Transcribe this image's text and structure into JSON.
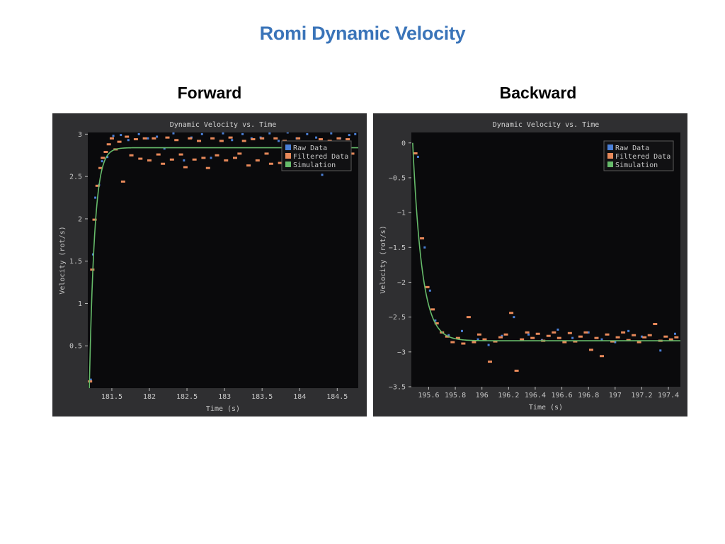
{
  "slide": {
    "title": "Romi Dynamic Velocity",
    "left_heading": "Forward",
    "right_heading": "Backward"
  },
  "colors": {
    "raw": "#4a7fd6",
    "filtered": "#e8895a",
    "simulation": "#66bb6a",
    "plot_bg": "#0a0a0c",
    "panel_bg": "#2f2f31"
  },
  "chart_data": [
    {
      "type": "scatter",
      "title": "Dynamic Velocity vs. Time",
      "xlabel": "Time (s)",
      "ylabel": "Velocity (rot/s)",
      "xlim": [
        181.18,
        184.78
      ],
      "ylim": [
        0,
        3.02
      ],
      "xticks": [
        181.5,
        182,
        182.5,
        183,
        183.5,
        184,
        184.5
      ],
      "yticks": [
        0.5,
        1,
        1.5,
        2,
        2.5,
        3
      ],
      "legend": {
        "placement": "top-right",
        "entries": [
          "Raw Data",
          "Filtered Data",
          "Simulation"
        ]
      },
      "simulation": {
        "start_time": 181.2,
        "final_value": 2.84,
        "time_constant": 0.07
      },
      "filtered_points": [
        [
          181.21,
          0.08
        ],
        [
          181.24,
          1.4
        ],
        [
          181.27,
          1.99
        ],
        [
          181.31,
          2.39
        ],
        [
          181.35,
          2.6
        ],
        [
          181.38,
          2.72
        ],
        [
          181.42,
          2.79
        ],
        [
          181.46,
          2.88
        ],
        [
          181.5,
          2.95
        ],
        [
          181.55,
          2.82
        ],
        [
          181.6,
          2.91
        ],
        [
          181.65,
          2.44
        ],
        [
          181.7,
          2.97
        ],
        [
          181.76,
          2.75
        ],
        [
          181.82,
          2.94
        ],
        [
          181.88,
          2.71
        ],
        [
          181.94,
          2.95
        ],
        [
          182.0,
          2.69
        ],
        [
          182.06,
          2.95
        ],
        [
          182.12,
          2.76
        ],
        [
          182.18,
          2.65
        ],
        [
          182.24,
          2.96
        ],
        [
          182.3,
          2.7
        ],
        [
          182.36,
          2.93
        ],
        [
          182.42,
          2.76
        ],
        [
          182.48,
          2.61
        ],
        [
          182.54,
          2.95
        ],
        [
          182.6,
          2.7
        ],
        [
          182.66,
          2.92
        ],
        [
          182.72,
          2.72
        ],
        [
          182.78,
          2.6
        ],
        [
          182.84,
          2.95
        ],
        [
          182.9,
          2.75
        ],
        [
          182.96,
          2.92
        ],
        [
          183.02,
          2.69
        ],
        [
          183.08,
          2.96
        ],
        [
          183.14,
          2.72
        ],
        [
          183.2,
          2.77
        ],
        [
          183.26,
          2.92
        ],
        [
          183.32,
          2.63
        ],
        [
          183.38,
          2.94
        ],
        [
          183.44,
          2.69
        ],
        [
          183.5,
          2.95
        ],
        [
          183.56,
          2.77
        ],
        [
          183.62,
          2.65
        ],
        [
          183.68,
          2.95
        ],
        [
          183.74,
          2.66
        ],
        [
          183.8,
          2.92
        ],
        [
          183.86,
          2.72
        ],
        [
          183.92,
          2.61
        ],
        [
          183.98,
          2.95
        ],
        [
          184.04,
          2.68
        ],
        [
          184.1,
          2.91
        ],
        [
          184.16,
          2.75
        ],
        [
          184.22,
          2.64
        ],
        [
          184.28,
          2.94
        ],
        [
          184.34,
          2.7
        ],
        [
          184.4,
          2.92
        ],
        [
          184.46,
          2.73
        ],
        [
          184.52,
          2.95
        ],
        [
          184.58,
          2.68
        ],
        [
          184.64,
          2.94
        ],
        [
          184.7,
          2.77
        ]
      ],
      "raw_points": [
        [
          181.22,
          0.1
        ],
        [
          181.25,
          1.58
        ],
        [
          181.28,
          2.25
        ],
        [
          181.33,
          2.4
        ],
        [
          181.37,
          2.68
        ],
        [
          181.44,
          2.73
        ],
        [
          181.52,
          2.98
        ],
        [
          181.62,
          2.99
        ],
        [
          181.72,
          2.93
        ],
        [
          181.86,
          3.0
        ],
        [
          181.98,
          2.95
        ],
        [
          182.1,
          2.97
        ],
        [
          182.2,
          2.83
        ],
        [
          182.32,
          3.01
        ],
        [
          182.46,
          2.69
        ],
        [
          182.56,
          2.96
        ],
        [
          182.7,
          3.0
        ],
        [
          182.82,
          2.72
        ],
        [
          182.98,
          3.01
        ],
        [
          183.1,
          2.93
        ],
        [
          183.24,
          3.0
        ],
        [
          183.36,
          2.95
        ],
        [
          183.48,
          2.96
        ],
        [
          183.6,
          3.01
        ],
        [
          183.72,
          2.92
        ],
        [
          183.84,
          3.02
        ],
        [
          183.96,
          2.95
        ],
        [
          184.1,
          3.0
        ],
        [
          184.22,
          2.96
        ],
        [
          184.3,
          2.52
        ],
        [
          184.42,
          3.01
        ],
        [
          184.54,
          2.95
        ],
        [
          184.66,
          2.99
        ],
        [
          184.74,
          3.0
        ]
      ]
    },
    {
      "type": "scatter",
      "title": "Dynamic Velocity vs. Time",
      "xlabel": "Time (s)",
      "ylabel": "Velocity (rot/s)",
      "xlim": [
        195.47,
        197.49
      ],
      "ylim": [
        -3.5,
        0.15
      ],
      "xticks": [
        195.6,
        195.8,
        196,
        196.2,
        196.4,
        196.6,
        196.8,
        197,
        197.2,
        197.4
      ],
      "yticks": [
        0,
        -0.5,
        -1,
        -1.5,
        -2,
        -2.5,
        -3,
        -3.5
      ],
      "legend": {
        "placement": "top-right",
        "entries": [
          "Raw Data",
          "Filtered Data",
          "Simulation"
        ]
      },
      "simulation": {
        "start_time": 195.48,
        "final_value": -2.84,
        "time_constant": 0.07
      },
      "filtered_points": [
        [
          195.5,
          -0.15
        ],
        [
          195.55,
          -1.37
        ],
        [
          195.59,
          -2.07
        ],
        [
          195.63,
          -2.39
        ],
        [
          195.66,
          -2.59
        ],
        [
          195.7,
          -2.72
        ],
        [
          195.74,
          -2.78
        ],
        [
          195.78,
          -2.86
        ],
        [
          195.82,
          -2.8
        ],
        [
          195.86,
          -2.88
        ],
        [
          195.9,
          -2.5
        ],
        [
          195.94,
          -2.86
        ],
        [
          195.98,
          -2.75
        ],
        [
          196.02,
          -2.82
        ],
        [
          196.06,
          -3.14
        ],
        [
          196.1,
          -2.85
        ],
        [
          196.14,
          -2.79
        ],
        [
          196.18,
          -2.75
        ],
        [
          196.22,
          -2.44
        ],
        [
          196.26,
          -3.27
        ],
        [
          196.3,
          -2.82
        ],
        [
          196.34,
          -2.72
        ],
        [
          196.38,
          -2.8
        ],
        [
          196.42,
          -2.74
        ],
        [
          196.46,
          -2.84
        ],
        [
          196.5,
          -2.77
        ],
        [
          196.54,
          -2.72
        ],
        [
          196.58,
          -2.8
        ],
        [
          196.62,
          -2.86
        ],
        [
          196.66,
          -2.73
        ],
        [
          196.7,
          -2.85
        ],
        [
          196.74,
          -2.78
        ],
        [
          196.78,
          -2.72
        ],
        [
          196.82,
          -2.97
        ],
        [
          196.86,
          -2.8
        ],
        [
          196.9,
          -3.06
        ],
        [
          196.94,
          -2.75
        ],
        [
          196.98,
          -2.85
        ],
        [
          197.02,
          -2.79
        ],
        [
          197.06,
          -2.72
        ],
        [
          197.1,
          -2.83
        ],
        [
          197.14,
          -2.76
        ],
        [
          197.18,
          -2.86
        ],
        [
          197.22,
          -2.79
        ],
        [
          197.26,
          -2.76
        ],
        [
          197.3,
          -2.6
        ],
        [
          197.34,
          -2.84
        ],
        [
          197.38,
          -2.78
        ],
        [
          197.42,
          -2.82
        ],
        [
          197.46,
          -2.79
        ]
      ],
      "raw_points": [
        [
          195.52,
          -0.2
        ],
        [
          195.57,
          -1.5
        ],
        [
          195.61,
          -2.12
        ],
        [
          195.65,
          -2.55
        ],
        [
          195.75,
          -2.76
        ],
        [
          195.85,
          -2.7
        ],
        [
          195.97,
          -2.82
        ],
        [
          196.05,
          -2.9
        ],
        [
          196.15,
          -2.77
        ],
        [
          196.24,
          -2.5
        ],
        [
          196.35,
          -2.75
        ],
        [
          196.45,
          -2.83
        ],
        [
          196.57,
          -2.68
        ],
        [
          196.68,
          -2.8
        ],
        [
          196.8,
          -2.72
        ],
        [
          196.9,
          -2.82
        ],
        [
          197.0,
          -2.86
        ],
        [
          197.1,
          -2.7
        ],
        [
          197.2,
          -2.78
        ],
        [
          197.34,
          -2.98
        ],
        [
          197.45,
          -2.74
        ]
      ]
    }
  ]
}
